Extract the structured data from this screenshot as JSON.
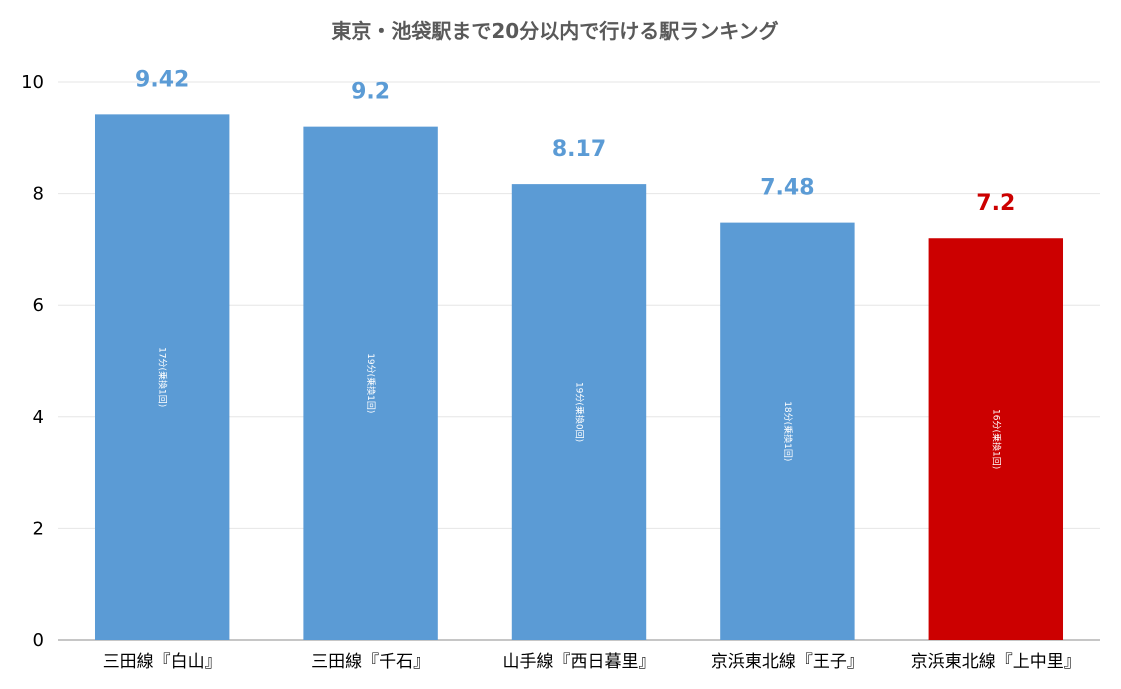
{
  "chart_data": {
    "type": "bar",
    "title": "東京・池袋駅まで20分以内で行ける駅ランキング",
    "categories": [
      "三田線『白山』",
      "三田線『千石』",
      "山手線『西日暮里』",
      "京浜東北線『王子』",
      "京浜東北線『上中里』"
    ],
    "values": [
      9.42,
      9.2,
      8.17,
      7.48,
      7.2
    ],
    "data_labels": [
      "9.42",
      "9.2",
      "8.17",
      "7.48",
      "7.2"
    ],
    "bar_notes": [
      "17分(乗換1回)",
      "19分(乗換1回)",
      "19分(乗換0回)",
      "18分(乗換1回)",
      "16分(乗換1回)"
    ],
    "highlight_index": 4,
    "colors": {
      "bar": "#5b9bd5",
      "highlight": "#cc0000",
      "label": "#5b9bd5",
      "highlight_label": "#cc0000"
    },
    "y_ticks": [
      "0",
      "2",
      "4",
      "6",
      "8",
      "10"
    ],
    "ylim": [
      0,
      10
    ],
    "xlabel": "",
    "ylabel": "",
    "grid": true,
    "legend": "none"
  }
}
